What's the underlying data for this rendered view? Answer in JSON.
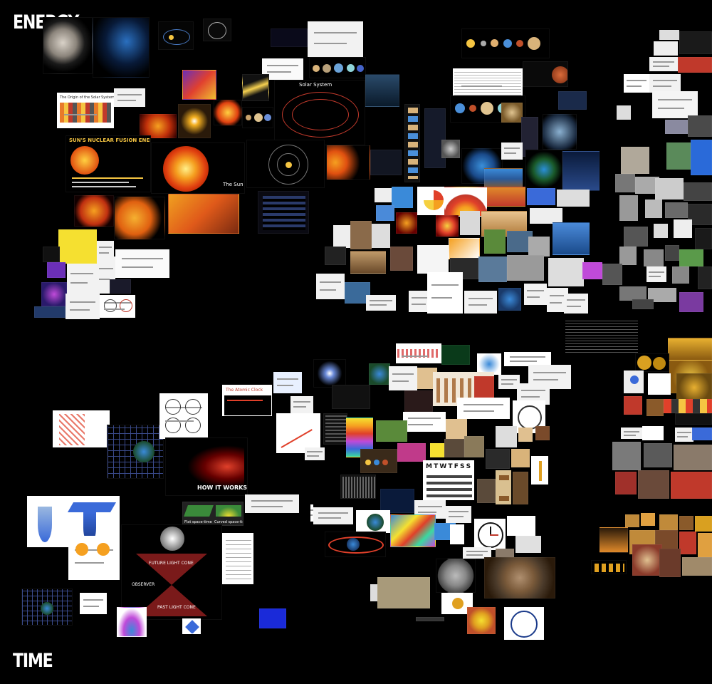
{
  "axes": {
    "top_left_label": "ENERGY",
    "bottom_left_label": "TIME"
  },
  "clusters": [
    {
      "topic": "solar system and the sun",
      "captions": [
        "SUN'S NUCLEAR FUSION ENERGY",
        "The Sun",
        "Solar System",
        "The Origin of the Solar System Elements"
      ]
    },
    {
      "topic": "earth structure and energy",
      "captions": []
    },
    {
      "topic": "technology and machinery",
      "captions": []
    },
    {
      "topic": "spacetime and relativity",
      "captions": [
        "HOW IT WORKS",
        "Flat space-time",
        "Curved space-time",
        "FUTURE LIGHT CONE",
        "PAST LIGHT CONE",
        "OBSERVER"
      ]
    },
    {
      "topic": "clocks, calendars and evolution",
      "captions": [
        "The Atomic Clock",
        "M T W T F S S"
      ]
    },
    {
      "topic": "money, people and religion",
      "captions": []
    }
  ],
  "palette": {
    "background": "#000000",
    "label_color": "#ffffff"
  }
}
